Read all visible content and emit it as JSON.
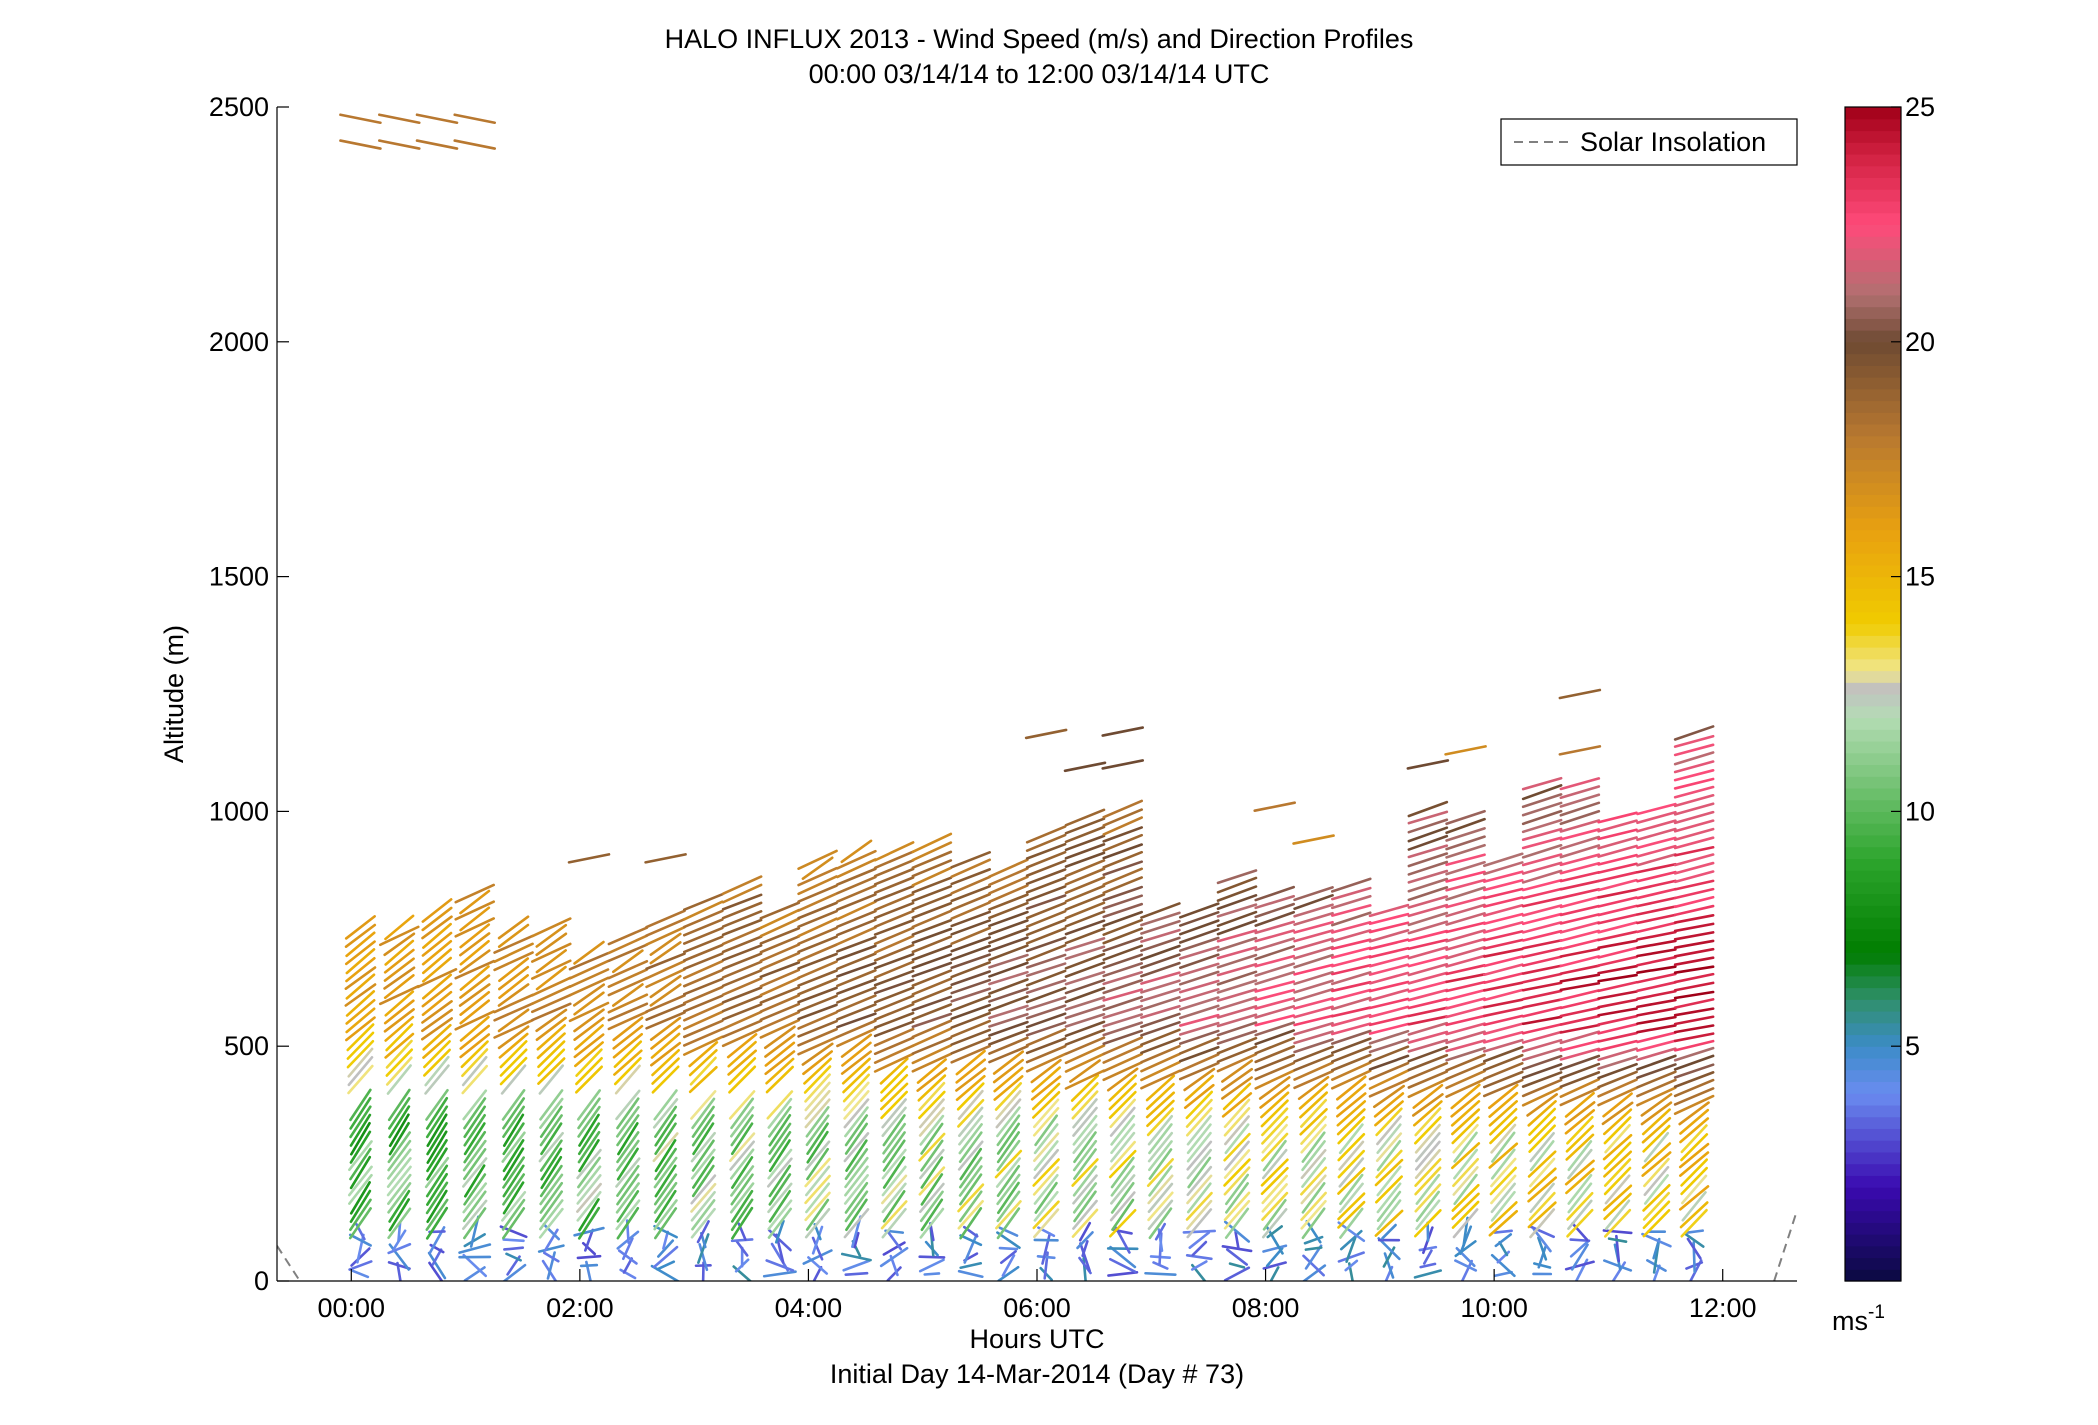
{
  "chart_data": {
    "type": "wind-barb-profile",
    "title": "HALO INFLUX 2013 - Wind Speed (m/s) and Direction Profiles",
    "subtitle": "00:00 03/14/14 to 12:00 03/14/14  UTC",
    "xlabel": "Hours UTC",
    "xlabel2": "Initial Day 14-Mar-2014 (Day # 73)",
    "ylabel": "Altitude (m)",
    "xlim": [
      -0.65,
      12.65
    ],
    "ylim": [
      0,
      2500
    ],
    "x_ticks": [
      {
        "value": 0,
        "label": "00:00"
      },
      {
        "value": 2,
        "label": "02:00"
      },
      {
        "value": 4,
        "label": "04:00"
      },
      {
        "value": 6,
        "label": "06:00"
      },
      {
        "value": 8,
        "label": "08:00"
      },
      {
        "value": 10,
        "label": "10:00"
      },
      {
        "value": 12,
        "label": "12:00"
      }
    ],
    "y_ticks": [
      {
        "value": 0,
        "label": "0"
      },
      {
        "value": 500,
        "label": "500"
      },
      {
        "value": 1000,
        "label": "1000"
      },
      {
        "value": 1500,
        "label": "1500"
      },
      {
        "value": 2000,
        "label": "2000"
      },
      {
        "value": 2500,
        "label": "2500"
      }
    ],
    "legend": {
      "label": "Solar Insolation",
      "position": "top-right",
      "style": "dashed",
      "color": "#808080"
    },
    "colorbar": {
      "range": [
        0,
        25
      ],
      "ticks": [
        5,
        10,
        15,
        20,
        25
      ],
      "unit_label": "ms",
      "unit_exponent": "-1",
      "colors": [
        {
          "v": 0,
          "c": "#0a0a40"
        },
        {
          "v": 2,
          "c": "#3a0ab0"
        },
        {
          "v": 4,
          "c": "#6a8cf0"
        },
        {
          "v": 5,
          "c": "#3c8cc8"
        },
        {
          "v": 6,
          "c": "#2f8f6a"
        },
        {
          "v": 7,
          "c": "#007d00"
        },
        {
          "v": 9,
          "c": "#2ea62e"
        },
        {
          "v": 12,
          "c": "#b4dcb4"
        },
        {
          "v": 12.6,
          "c": "#c0c0c0"
        },
        {
          "v": 13,
          "c": "#f0e68c"
        },
        {
          "v": 14,
          "c": "#f0cc00"
        },
        {
          "v": 16,
          "c": "#e8a010"
        },
        {
          "v": 18,
          "c": "#b87830"
        },
        {
          "v": 20,
          "c": "#6e4a32"
        },
        {
          "v": 21,
          "c": "#b07070"
        },
        {
          "v": 22.5,
          "c": "#ff4a7a"
        },
        {
          "v": 24,
          "c": "#d02040"
        },
        {
          "v": 25,
          "c": "#a00018"
        }
      ]
    },
    "profile_times_hours": [
      0.08,
      0.42,
      0.75,
      1.08,
      1.42,
      1.75,
      2.08,
      2.42,
      2.75,
      3.08,
      3.42,
      3.75,
      4.08,
      4.42,
      4.75,
      5.08,
      5.42,
      5.75,
      6.08,
      6.42,
      6.75,
      7.08,
      7.42,
      7.75,
      8.08,
      8.42,
      8.75,
      9.08,
      9.42,
      9.75,
      10.08,
      10.42,
      10.75,
      11.08,
      11.42,
      11.75
    ],
    "profile_top_altitudes_m": [
      760,
      760,
      790,
      830,
      770,
      760,
      700,
      740,
      780,
      820,
      860,
      790,
      900,
      930,
      920,
      940,
      900,
      880,
      960,
      1000,
      1010,
      790,
      800,
      870,
      830,
      840,
      850,
      800,
      1010,
      1000,
      900,
      1060,
      1060,
      1000,
      1020,
      1170
    ],
    "upper_layer": {
      "times_hours": [
        0.08,
        0.42,
        0.75,
        1.08
      ],
      "altitudes_m": [
        2420,
        2475
      ],
      "speed_ms": 18
    },
    "isolated_barbs": [
      {
        "time": 2.08,
        "alt": 900,
        "speed": 19
      },
      {
        "time": 2.75,
        "alt": 900,
        "speed": 19
      },
      {
        "time": 6.08,
        "alt": 1165,
        "speed": 19
      },
      {
        "time": 6.42,
        "alt": 1095,
        "speed": 20
      },
      {
        "time": 6.75,
        "alt": 1170,
        "speed": 20
      },
      {
        "time": 6.75,
        "alt": 1100,
        "speed": 20
      },
      {
        "time": 8.08,
        "alt": 1010,
        "speed": 18
      },
      {
        "time": 8.42,
        "alt": 940,
        "speed": 17
      },
      {
        "time": 9.42,
        "alt": 1100,
        "speed": 20
      },
      {
        "time": 9.75,
        "alt": 1130,
        "speed": 17
      },
      {
        "time": 10.75,
        "alt": 1250,
        "speed": 19
      },
      {
        "time": 10.75,
        "alt": 1130,
        "speed": 18
      }
    ]
  }
}
